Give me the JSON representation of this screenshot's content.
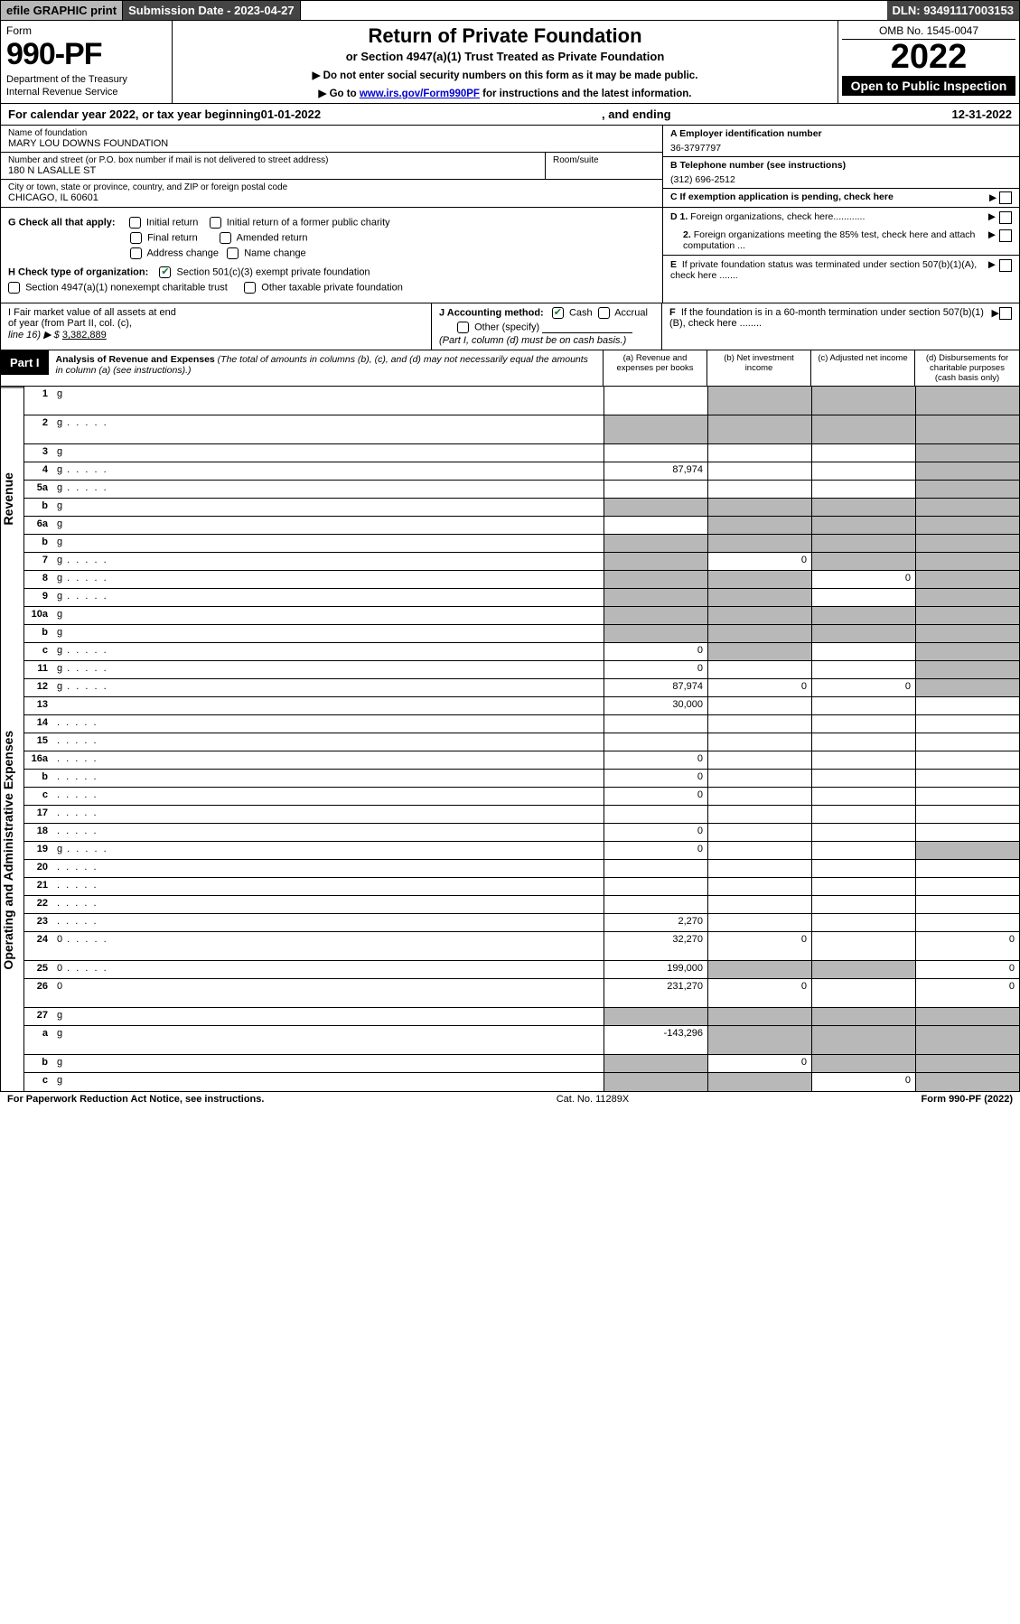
{
  "topbar": {
    "efile": "efile GRAPHIC print",
    "subdate_label": "Submission Date - ",
    "subdate": "2023-04-27",
    "dln_label": "DLN: ",
    "dln": "93491117003153"
  },
  "header": {
    "form_word": "Form",
    "form_num": "990-PF",
    "dept1": "Department of the Treasury",
    "dept2": "Internal Revenue Service",
    "title": "Return of Private Foundation",
    "subtitle": "or Section 4947(a)(1) Trust Treated as Private Foundation",
    "note1": "▶ Do not enter social security numbers on this form as it may be made public.",
    "note2_pre": "▶ Go to ",
    "note2_link": "www.irs.gov/Form990PF",
    "note2_post": " for instructions and the latest information.",
    "omb": "OMB No. 1545-0047",
    "year": "2022",
    "open": "Open to Public Inspection"
  },
  "calyear": {
    "pre": "For calendar year 2022, or tax year beginning ",
    "begin": "01-01-2022",
    "mid": ", and ending ",
    "end": "12-31-2022"
  },
  "ident": {
    "name_label": "Name of foundation",
    "name": "MARY LOU DOWNS FOUNDATION",
    "addr_label": "Number and street (or P.O. box number if mail is not delivered to street address)",
    "addr": "180 N LASALLE ST",
    "room_label": "Room/suite",
    "city_label": "City or town, state or province, country, and ZIP or foreign postal code",
    "city": "CHICAGO, IL  60601",
    "a_label": "A Employer identification number",
    "a_val": "36-3797797",
    "b_label": "B Telephone number (see instructions)",
    "b_val": "(312) 696-2512",
    "c_label": "C If exemption application is pending, check here"
  },
  "g": {
    "label": "G Check all that apply:",
    "opts": [
      "Initial return",
      "Initial return of a former public charity",
      "Final return",
      "Amended return",
      "Address change",
      "Name change"
    ]
  },
  "h": {
    "label": "H Check type of organization:",
    "opt1": "Section 501(c)(3) exempt private foundation",
    "opt2": "Section 4947(a)(1) nonexempt charitable trust",
    "opt3": "Other taxable private foundation"
  },
  "d": {
    "d1": "D 1. Foreign organizations, check here............",
    "d2a": "2. Foreign organizations meeting the 85%",
    "d2b": "test, check here and attach computation ...",
    "e1": "E  If private foundation status was terminated",
    "e2": "under section 507(b)(1)(A), check here .......",
    "f1": "F  If the foundation is in a 60-month termination",
    "f2": "under section 507(b)(1)(B), check here ........"
  },
  "i": {
    "label1": "I Fair market value of all assets at end",
    "label2": "of year (from Part II, col. (c),",
    "label3a": "line 16) ▶ $ ",
    "label3b": "3,382,889",
    "j_label": "J Accounting method:",
    "j_cash": "Cash",
    "j_accrual": "Accrual",
    "j_other": "Other (specify)",
    "j_note": "(Part I, column (d) must be on cash basis.)"
  },
  "part1": {
    "tab": "Part I",
    "title": "Analysis of Revenue and Expenses",
    "title_note": " (The total of amounts in columns (b), (c), and (d) may not necessarily equal the amounts in column (a) (see instructions).)",
    "cols": {
      "a": "(a)   Revenue and expenses per books",
      "b": "(b)   Net investment income",
      "c": "(c)   Adjusted net income",
      "d": "(d)  Disbursements for charitable purposes (cash basis only)"
    }
  },
  "side": {
    "rev": "Revenue",
    "exp": "Operating and Administrative Expenses"
  },
  "rows": [
    {
      "n": "1",
      "d": "g",
      "a": "",
      "b": "g",
      "c": "g",
      "t": 1
    },
    {
      "n": "2",
      "d": "g",
      "a": "g",
      "b": "g",
      "c": "g",
      "t": 1,
      "dots": 1
    },
    {
      "n": "3",
      "d": "g",
      "a": "",
      "b": "",
      "c": ""
    },
    {
      "n": "4",
      "d": "g",
      "a": "87,974",
      "b": "",
      "c": "",
      "dots": 1
    },
    {
      "n": "5a",
      "d": "g",
      "a": "",
      "b": "",
      "c": "",
      "dots": 1
    },
    {
      "n": "b",
      "d": "g",
      "a": "g",
      "b": "g",
      "c": "g"
    },
    {
      "n": "6a",
      "d": "g",
      "a": "",
      "b": "g",
      "c": "g"
    },
    {
      "n": "b",
      "d": "g",
      "a": "g",
      "b": "g",
      "c": "g"
    },
    {
      "n": "7",
      "d": "g",
      "a": "g",
      "b": "0",
      "c": "g",
      "dots": 1
    },
    {
      "n": "8",
      "d": "g",
      "a": "g",
      "b": "g",
      "c": "0",
      "dots": 1
    },
    {
      "n": "9",
      "d": "g",
      "a": "g",
      "b": "g",
      "c": "",
      "dots": 1
    },
    {
      "n": "10a",
      "d": "g",
      "a": "g",
      "b": "g",
      "c": "g"
    },
    {
      "n": "b",
      "d": "g",
      "a": "g",
      "b": "g",
      "c": "g"
    },
    {
      "n": "c",
      "d": "g",
      "a": "0",
      "b": "g",
      "c": "",
      "dots": 1
    },
    {
      "n": "11",
      "d": "g",
      "a": "0",
      "b": "",
      "c": "",
      "dots": 1
    },
    {
      "n": "12",
      "d": "g",
      "a": "87,974",
      "b": "0",
      "c": "0",
      "dots": 1
    },
    {
      "n": "13",
      "d": "",
      "a": "30,000",
      "b": "",
      "c": ""
    },
    {
      "n": "14",
      "d": "",
      "a": "",
      "b": "",
      "c": "",
      "dots": 1
    },
    {
      "n": "15",
      "d": "",
      "a": "",
      "b": "",
      "c": "",
      "dots": 1
    },
    {
      "n": "16a",
      "d": "",
      "a": "0",
      "b": "",
      "c": "",
      "dots": 1
    },
    {
      "n": "b",
      "d": "",
      "a": "0",
      "b": "",
      "c": "",
      "dots": 1
    },
    {
      "n": "c",
      "d": "",
      "a": "0",
      "b": "",
      "c": "",
      "dots": 1
    },
    {
      "n": "17",
      "d": "",
      "a": "",
      "b": "",
      "c": "",
      "dots": 1
    },
    {
      "n": "18",
      "d": "",
      "a": "0",
      "b": "",
      "c": "",
      "dots": 1
    },
    {
      "n": "19",
      "d": "g",
      "a": "0",
      "b": "",
      "c": "",
      "dots": 1
    },
    {
      "n": "20",
      "d": "",
      "a": "",
      "b": "",
      "c": "",
      "dots": 1
    },
    {
      "n": "21",
      "d": "",
      "a": "",
      "b": "",
      "c": "",
      "dots": 1
    },
    {
      "n": "22",
      "d": "",
      "a": "",
      "b": "",
      "c": "",
      "dots": 1
    },
    {
      "n": "23",
      "d": "",
      "a": "2,270",
      "b": "",
      "c": "",
      "dots": 1
    },
    {
      "n": "24",
      "d": "0",
      "a": "32,270",
      "b": "0",
      "c": "",
      "dots": 1,
      "t": 1
    },
    {
      "n": "25",
      "d": "0",
      "a": "199,000",
      "b": "g",
      "c": "g",
      "dots": 1
    },
    {
      "n": "26",
      "d": "0",
      "a": "231,270",
      "b": "0",
      "c": "",
      "t": 1
    },
    {
      "n": "27",
      "d": "g",
      "a": "g",
      "b": "g",
      "c": "g"
    },
    {
      "n": "a",
      "d": "g",
      "a": "-143,296",
      "b": "g",
      "c": "g",
      "t": 1
    },
    {
      "n": "b",
      "d": "g",
      "a": "g",
      "b": "0",
      "c": "g"
    },
    {
      "n": "c",
      "d": "g",
      "a": "g",
      "b": "g",
      "c": "0"
    }
  ],
  "footer": {
    "left": "For Paperwork Reduction Act Notice, see instructions.",
    "mid": "Cat. No. 11289X",
    "right": "Form 990-PF (2022)"
  },
  "colors": {
    "grey": "#b8b8b8",
    "dark": "#444444",
    "green": "#0a7a2f",
    "link": "#0000cc"
  }
}
